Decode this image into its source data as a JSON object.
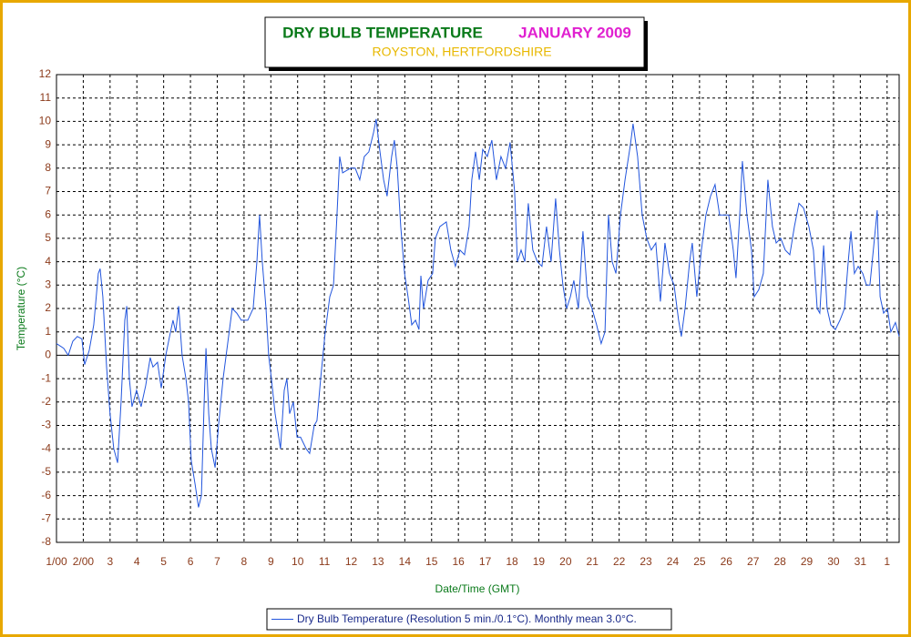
{
  "chart_data": {
    "type": "line",
    "title": "DRY BULB TEMPERATURE",
    "title_period": "JANUARY 2009",
    "subtitle": "ROYSTON, HERTFORDSHIRE",
    "xlabel": "Date/Time (GMT)",
    "ylabel": "Temperature (°C)",
    "x": [
      0,
      0.27,
      0.44,
      0.61,
      0.78,
      0.95,
      1.05,
      1.22,
      1.39,
      1.56,
      1.63,
      1.73,
      1.87,
      2.0,
      2.14,
      2.28,
      2.41,
      2.55,
      2.62,
      2.72,
      2.82,
      2.99,
      3.16,
      3.33,
      3.5,
      3.6,
      3.77,
      3.91,
      4.08,
      4.22,
      4.35,
      4.45,
      4.56,
      4.69,
      4.83,
      4.93,
      5.03,
      5.17,
      5.3,
      5.41,
      5.51,
      5.58,
      5.68,
      5.78,
      5.92,
      6.05,
      6.22,
      6.39,
      6.56,
      6.73,
      6.9,
      7.14,
      7.34,
      7.48,
      7.58,
      7.68,
      7.82,
      7.92,
      8.02,
      8.16,
      8.36,
      8.5,
      8.6,
      8.7,
      8.84,
      8.98,
      9.11,
      9.32,
      9.45,
      9.62,
      9.72,
      9.86,
      10.03,
      10.2,
      10.34,
      10.47,
      10.57,
      10.68,
      10.98,
      11.15,
      11.32,
      11.49,
      11.66,
      11.83,
      11.93,
      12.04,
      12.21,
      12.34,
      12.51,
      12.61,
      12.72,
      12.85,
      12.99,
      13.12,
      13.26,
      13.4,
      13.53,
      13.6,
      13.7,
      13.87,
      14.04,
      14.14,
      14.31,
      14.55,
      14.72,
      14.89,
      15.06,
      15.23,
      15.4,
      15.5,
      15.64,
      15.78,
      15.91,
      16.08,
      16.25,
      16.42,
      16.59,
      16.76,
      16.93,
      17.1,
      17.2,
      17.34,
      17.48,
      17.61,
      17.78,
      17.95,
      18.12,
      18.29,
      18.46,
      18.63,
      18.77,
      18.9,
      19.04,
      19.18,
      19.31,
      19.48,
      19.65,
      19.82,
      19.99,
      20.16,
      20.33,
      20.47,
      20.6,
      20.74,
      20.88,
      21.05,
      21.22,
      21.42,
      21.52,
      21.69,
      21.86,
      22.03,
      22.2,
      22.37,
      22.54,
      22.71,
      22.88,
      23.05,
      23.22,
      23.32,
      23.46,
      23.63,
      23.73,
      23.9,
      24.07,
      24.24,
      24.41,
      24.58,
      24.75,
      24.92,
      25.09,
      25.26,
      25.36,
      25.5,
      25.6,
      25.77,
      25.94,
      26.04,
      26.21,
      26.38,
      26.55,
      26.72,
      26.86,
      27.03,
      27.2,
      27.37,
      27.54,
      27.71,
      27.88,
      28.08,
      28.25,
      28.39,
      28.49,
      28.63,
      28.76,
      28.9,
      29.07,
      29.24,
      29.41,
      29.55,
      29.65,
      29.78,
      29.92,
      30.09,
      30.23,
      30.36,
      30.53,
      30.63,
      30.74,
      30.87,
      31.01,
      31.14,
      31.31,
      31.45
    ],
    "series": [
      {
        "name": "Dry Bulb Temperature (Resolution 5 min./0.1°C). Monthly mean 3.0°C.",
        "color": "#2255dd",
        "values": [
          0.5,
          0.3,
          0.0,
          0.6,
          0.8,
          0.7,
          -0.4,
          0.2,
          1.3,
          3.5,
          3.7,
          2.5,
          -0.5,
          -2.5,
          -4.0,
          -4.6,
          -2.0,
          1.5,
          2.1,
          -1.0,
          -2.2,
          -1.5,
          -2.2,
          -1.3,
          -0.1,
          -0.5,
          -0.3,
          -1.4,
          0.0,
          0.8,
          1.5,
          1.0,
          2.1,
          0.0,
          -1.0,
          -2.0,
          -4.5,
          -5.5,
          -6.5,
          -6.0,
          -2.0,
          0.3,
          -2.5,
          -4.0,
          -4.8,
          -3.0,
          -1.0,
          0.5,
          2.0,
          1.8,
          1.5,
          1.5,
          2.0,
          4.0,
          6.0,
          4.0,
          2.0,
          0.0,
          -1.0,
          -2.5,
          -4.0,
          -1.5,
          -1.0,
          -2.5,
          -2.0,
          -3.5,
          -3.5,
          -4.0,
          -4.2,
          -3.0,
          -2.8,
          -1.0,
          1.0,
          2.5,
          3.0,
          6.0,
          8.5,
          7.8,
          8.0,
          8.0,
          7.5,
          8.5,
          8.7,
          9.5,
          10.1,
          9.0,
          7.5,
          6.8,
          8.5,
          9.2,
          8.0,
          5.5,
          3.5,
          2.5,
          1.3,
          1.5,
          1.1,
          3.4,
          2.0,
          3.2,
          3.5,
          5.0,
          5.5,
          5.7,
          4.5,
          3.8,
          4.5,
          4.3,
          5.5,
          7.5,
          8.7,
          7.5,
          8.8,
          8.5,
          9.2,
          7.5,
          8.5,
          8.0,
          9.1,
          7.0,
          4.0,
          4.5,
          4.0,
          6.5,
          4.5,
          4.0,
          3.8,
          5.5,
          4.0,
          6.7,
          4.5,
          3.0,
          2.0,
          2.5,
          3.2,
          2.0,
          5.3,
          2.5,
          2.0,
          1.3,
          0.5,
          1.0,
          6.0,
          4.0,
          3.5,
          6.0,
          7.5,
          9.0,
          9.9,
          8.5,
          6.0,
          5.0,
          4.5,
          4.8,
          2.3,
          4.8,
          3.5,
          3.0,
          1.5,
          0.8,
          2.0,
          4.0,
          4.8,
          2.5,
          4.5,
          6.0,
          6.8,
          7.3,
          6.0,
          6.0,
          6.0,
          4.5,
          3.3,
          6.0,
          8.3,
          6.0,
          4.5,
          2.5,
          2.8,
          3.5,
          7.5,
          5.5,
          4.8,
          5.0,
          4.5,
          4.3,
          5.5,
          6.5,
          6.3,
          5.5,
          4.5,
          2.0,
          1.8,
          4.7,
          2.0,
          1.3,
          1.1,
          1.5,
          2.0,
          4.0,
          5.3,
          3.5,
          3.8,
          3.5,
          3.0,
          3.0,
          5.0,
          6.2,
          2.5,
          1.8,
          2.0,
          1.0,
          1.4,
          0.8
        ]
      }
    ],
    "xlim": [
      0,
      31.45
    ],
    "xticks": [
      {
        "value": 0,
        "label": "1/00"
      },
      {
        "value": 1,
        "label": "2/00"
      },
      {
        "value": 2,
        "label": "3"
      },
      {
        "value": 3,
        "label": "4"
      },
      {
        "value": 4,
        "label": "5"
      },
      {
        "value": 5,
        "label": "6"
      },
      {
        "value": 6,
        "label": "7"
      },
      {
        "value": 7,
        "label": "8"
      },
      {
        "value": 8,
        "label": "9"
      },
      {
        "value": 9,
        "label": "10"
      },
      {
        "value": 10,
        "label": "11"
      },
      {
        "value": 11,
        "label": "12"
      },
      {
        "value": 12,
        "label": "13"
      },
      {
        "value": 13,
        "label": "14"
      },
      {
        "value": 14,
        "label": "15"
      },
      {
        "value": 15,
        "label": "16"
      },
      {
        "value": 16,
        "label": "17"
      },
      {
        "value": 17,
        "label": "18"
      },
      {
        "value": 18,
        "label": "19"
      },
      {
        "value": 19,
        "label": "20"
      },
      {
        "value": 20,
        "label": "21"
      },
      {
        "value": 21,
        "label": "22"
      },
      {
        "value": 22,
        "label": "23"
      },
      {
        "value": 23,
        "label": "24"
      },
      {
        "value": 24,
        "label": "25"
      },
      {
        "value": 25,
        "label": "26"
      },
      {
        "value": 26,
        "label": "27"
      },
      {
        "value": 27,
        "label": "28"
      },
      {
        "value": 28,
        "label": "29"
      },
      {
        "value": 29,
        "label": "30"
      },
      {
        "value": 30,
        "label": "31"
      },
      {
        "value": 31,
        "label": "1"
      }
    ],
    "ylim": [
      -8,
      12
    ],
    "yticks": [
      -8,
      -7,
      -6,
      -5,
      -4,
      -3,
      -2,
      -1,
      0,
      1,
      2,
      3,
      4,
      5,
      6,
      7,
      8,
      9,
      10,
      11,
      12
    ],
    "grid": true,
    "legend": "bottom"
  }
}
